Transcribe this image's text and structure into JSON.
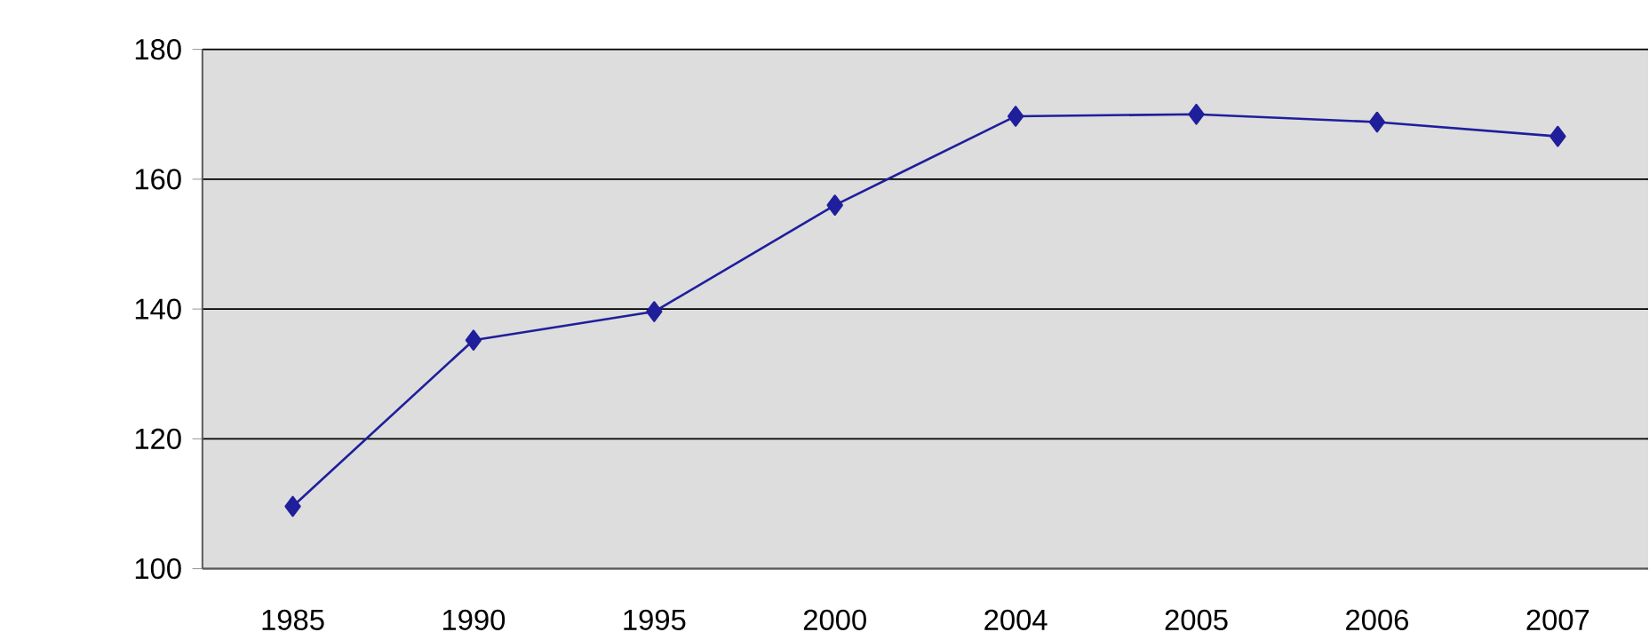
{
  "chart_data": {
    "type": "line",
    "categories": [
      "1985",
      "1990",
      "1995",
      "2000",
      "2004",
      "2005",
      "2006",
      "2007"
    ],
    "values": [
      109.6,
      135.2,
      139.6,
      156.0,
      169.7,
      170.0,
      168.8,
      166.6
    ],
    "color": "#1f1f9c",
    "marker": "diamond",
    "line_style": "solid",
    "ylim": [
      100,
      180
    ],
    "yticks": [
      100,
      120,
      140,
      160,
      180
    ],
    "grid": "y"
  }
}
